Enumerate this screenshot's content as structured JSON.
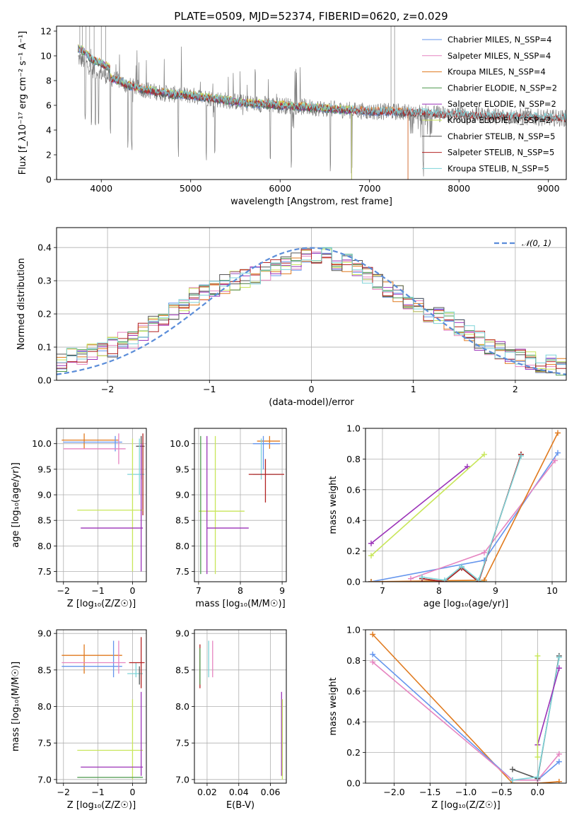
{
  "figure_title": "PLATE=0509, MJD=52374, FIBERID=0620, z=0.029",
  "colors": {
    "chabrier_miles": "#6495ED",
    "salpeter_miles": "#E684C0",
    "kroupa_miles": "#E07A1E",
    "chabrier_elodie": "#4E9A4E",
    "salpeter_elodie": "#9B32B8",
    "kroupa_elodie": "#C8E65A",
    "chabrier_stelib": "#555555",
    "salpeter_stelib": "#B22222",
    "kroupa_stelib": "#7DD3D8",
    "data": "#808080",
    "gaussian": "#5B8DD9"
  },
  "chart_data": [
    {
      "id": "spectrum",
      "type": "line",
      "xlabel": "wavelength [Angstrom, rest frame]",
      "ylabel": "Flux [f_λ10⁻¹⁷ erg cm⁻² s⁻¹ A⁻¹]",
      "xlim": [
        3500,
        9200
      ],
      "ylim": [
        0,
        12.4
      ],
      "xticks": [
        4000,
        5000,
        6000,
        7000,
        8000,
        9000
      ],
      "yticks": [
        0,
        2,
        4,
        6,
        8,
        10,
        12
      ],
      "legend_position": "top-right",
      "legend": [
        {
          "name": "Chabrier MILES, N_SSP=4",
          "color_key": "chabrier_miles"
        },
        {
          "name": "Salpeter MILES, N_SSP=4",
          "color_key": "salpeter_miles"
        },
        {
          "name": "Kroupa MILES, N_SSP=4",
          "color_key": "kroupa_miles"
        },
        {
          "name": "Chabrier ELODIE, N_SSP=2",
          "color_key": "chabrier_elodie"
        },
        {
          "name": "Salpeter ELODIE, N_SSP=2",
          "color_key": "salpeter_elodie"
        },
        {
          "name": "Kroupa ELODIE, N_SSP=2",
          "color_key": "kroupa_elodie"
        },
        {
          "name": "Chabrier STELIB, N_SSP=5",
          "color_key": "chabrier_stelib"
        },
        {
          "name": "Salpeter STELIB, N_SSP=5",
          "color_key": "salpeter_stelib"
        },
        {
          "name": "Kroupa STELIB, N_SSP=5",
          "color_key": "kroupa_stelib"
        }
      ],
      "observed_continuum": [
        [
          3740,
          9.8
        ],
        [
          3800,
          9.6
        ],
        [
          3900,
          8.9
        ],
        [
          4000,
          8.6
        ],
        [
          4100,
          8.2
        ],
        [
          4200,
          8.0
        ],
        [
          4300,
          7.6
        ],
        [
          4400,
          7.4
        ],
        [
          4600,
          7.1
        ],
        [
          4800,
          6.9
        ],
        [
          5000,
          6.8
        ],
        [
          5200,
          6.6
        ],
        [
          5400,
          6.4
        ],
        [
          5600,
          6.2
        ],
        [
          5800,
          6.1
        ],
        [
          6000,
          6.0
        ],
        [
          6200,
          5.9
        ],
        [
          6400,
          5.8
        ],
        [
          6600,
          5.7
        ],
        [
          6800,
          5.6
        ],
        [
          7000,
          5.5
        ],
        [
          7200,
          5.5
        ],
        [
          7400,
          5.45
        ],
        [
          7600,
          5.4
        ],
        [
          7800,
          5.3
        ],
        [
          8000,
          5.25
        ],
        [
          8200,
          5.2
        ],
        [
          8400,
          5.15
        ],
        [
          8600,
          5.1
        ],
        [
          8800,
          5.05
        ],
        [
          9000,
          5.0
        ],
        [
          9200,
          4.95
        ]
      ],
      "model_end_wavelengths": {
        "chabrier_miles": 7430,
        "salpeter_miles": 7430,
        "kroupa_miles": 7430,
        "chabrier_elodie": 6800,
        "salpeter_elodie": 6800,
        "kroupa_elodie": 6800,
        "chabrier_stelib": 9200,
        "salpeter_stelib": 9200,
        "kroupa_stelib": 9200
      }
    },
    {
      "id": "residual_histogram",
      "type": "line",
      "xlabel": "(data-model)/error",
      "ylabel": "Normed distribution",
      "xlim": [
        -2.5,
        2.5
      ],
      "ylim": [
        0,
        0.46
      ],
      "xticks": [
        -2,
        -1,
        0,
        1,
        2
      ],
      "yticks": [
        0.0,
        0.1,
        0.2,
        0.3,
        0.4
      ],
      "legend_position": "top-right",
      "legend": [
        {
          "name": "𝒩(0, 1)",
          "color_key": "gaussian",
          "style": "dashed"
        }
      ],
      "bin_width": 0.1,
      "bin_start": -2.5,
      "histogram_mean": [
        0.05,
        0.07,
        0.07,
        0.08,
        0.09,
        0.1,
        0.12,
        0.12,
        0.15,
        0.17,
        0.19,
        0.21,
        0.23,
        0.25,
        0.27,
        0.28,
        0.29,
        0.3,
        0.31,
        0.32,
        0.33,
        0.34,
        0.35,
        0.36,
        0.37,
        0.38,
        0.37,
        0.36,
        0.35,
        0.34,
        0.32,
        0.3,
        0.28,
        0.26,
        0.24,
        0.22,
        0.2,
        0.19,
        0.18,
        0.16,
        0.14,
        0.12,
        0.1,
        0.09,
        0.08,
        0.07,
        0.06,
        0.05,
        0.05,
        0.04
      ]
    },
    {
      "id": "age_vs_Z",
      "type": "scatter",
      "xlabel": "Z [log₁₀(Z/Z☉)]",
      "ylabel": "age  [log₁₀(age/yr)]",
      "xlim": [
        -2.2,
        0.4
      ],
      "ylim": [
        7.3,
        10.3
      ],
      "xticks": [
        -2,
        -1,
        0
      ],
      "yticks": [
        7.5,
        8.0,
        8.5,
        9.0,
        9.5,
        10.0
      ]
    },
    {
      "id": "age_vs_mass",
      "type": "scatter",
      "xlabel": "mass [log₁₀(M/M☉)]",
      "ylabel": "",
      "xlim": [
        6.9,
        9.1
      ],
      "ylim": [
        7.3,
        10.3
      ],
      "xticks": [
        7,
        8,
        9
      ],
      "yticks": [
        7.5,
        8.0,
        8.5,
        9.0,
        9.5,
        10.0
      ]
    },
    {
      "id": "weight_vs_age",
      "type": "line",
      "xlabel": "age  [log₁₀(age/yr)]",
      "ylabel": "mass weight",
      "xlim": [
        6.7,
        10.25
      ],
      "ylim": [
        0,
        1.0
      ],
      "xticks": [
        7,
        8,
        9,
        10
      ],
      "yticks": [
        0.0,
        0.2,
        0.4,
        0.6,
        0.8,
        1.0
      ],
      "series": [
        {
          "color_key": "salpeter_elodie",
          "x": [
            6.8,
            8.5
          ],
          "y": [
            0.25,
            0.75
          ]
        },
        {
          "color_key": "kroupa_elodie",
          "x": [
            6.8,
            8.8
          ],
          "y": [
            0.17,
            0.83
          ]
        },
        {
          "color_key": "chabrier_elodie",
          "x": [
            6.8,
            8.8
          ],
          "y": [
            0.0,
            0.0
          ]
        },
        {
          "color_key": "chabrier_miles",
          "x": [
            6.8,
            8.8,
            10.1
          ],
          "y": [
            0.0,
            0.14,
            0.84
          ]
        },
        {
          "color_key": "salpeter_miles",
          "x": [
            7.5,
            8.8,
            10.05
          ],
          "y": [
            0.02,
            0.19,
            0.79
          ]
        },
        {
          "color_key": "kroupa_miles",
          "x": [
            6.8,
            8.8,
            10.1
          ],
          "y": [
            0.0,
            0.01,
            0.97
          ]
        },
        {
          "color_key": "chabrier_stelib",
          "x": [
            7.7,
            8.1,
            8.4,
            8.7,
            9.45
          ],
          "y": [
            0.02,
            0.0,
            0.09,
            0.0,
            0.83
          ]
        },
        {
          "color_key": "salpeter_stelib",
          "x": [
            7.7,
            8.1,
            8.4,
            8.7,
            9.45
          ],
          "y": [
            0.02,
            0.0,
            0.09,
            0.0,
            0.83
          ]
        },
        {
          "color_key": "kroupa_stelib",
          "x": [
            7.7,
            8.1,
            8.4,
            8.7,
            9.45
          ],
          "y": [
            0.03,
            0.01,
            0.1,
            0.01,
            0.82
          ]
        }
      ]
    },
    {
      "id": "mass_vs_Z",
      "type": "scatter",
      "xlabel": "Z [log₁₀(Z/Z☉)]",
      "ylabel": "mass [log₁₀(M/M☉)]",
      "xlim": [
        -2.2,
        0.4
      ],
      "ylim": [
        6.95,
        9.05
      ],
      "xticks": [
        -2,
        -1,
        0
      ],
      "yticks": [
        7.0,
        7.5,
        8.0,
        8.5,
        9.0
      ]
    },
    {
      "id": "mass_vs_EBV",
      "type": "scatter",
      "xlabel": "E(B-V)",
      "ylabel": "",
      "xlim": [
        0.012,
        0.07
      ],
      "ylim": [
        6.95,
        9.05
      ],
      "xticks": [
        0.02,
        0.04,
        0.06
      ],
      "yticks": [
        7.0,
        7.5,
        8.0,
        8.5,
        9.0
      ]
    },
    {
      "id": "weight_vs_Z",
      "type": "line",
      "xlabel": "Z [log₁₀(Z/Z☉)]",
      "ylabel": "mass weight",
      "xlim": [
        -2.4,
        0.4
      ],
      "ylim": [
        0,
        1.0
      ],
      "xticks": [
        -2.0,
        -1.5,
        -1.0,
        -0.5,
        0.0
      ],
      "yticks": [
        0.0,
        0.2,
        0.4,
        0.6,
        0.8,
        1.0
      ],
      "series": [
        {
          "color_key": "kroupa_miles",
          "x": [
            -2.3,
            -0.35,
            0.0,
            0.3
          ],
          "y": [
            0.97,
            0.0,
            0.0,
            0.01
          ]
        },
        {
          "color_key": "chabrier_miles",
          "x": [
            -2.3,
            -0.35,
            0.0,
            0.3
          ],
          "y": [
            0.84,
            0.02,
            0.02,
            0.14
          ]
        },
        {
          "color_key": "salpeter_miles",
          "x": [
            -2.3,
            -0.35,
            0.0,
            0.3
          ],
          "y": [
            0.79,
            0.02,
            0.02,
            0.19
          ]
        },
        {
          "color_key": "chabrier_stelib",
          "x": [
            -0.35,
            0.0,
            0.3
          ],
          "y": [
            0.09,
            0.03,
            0.83
          ]
        },
        {
          "color_key": "kroupa_stelib",
          "x": [
            -0.35,
            0.0,
            0.3
          ],
          "y": [
            0.02,
            0.04,
            0.82
          ]
        },
        {
          "color_key": "salpeter_elodie",
          "x": [
            0.0,
            0.3
          ],
          "y": [
            0.25,
            0.75
          ]
        },
        {
          "color_key": "kroupa_elodie",
          "x": [
            0.0,
            0.0
          ],
          "y": [
            0.17,
            0.83
          ]
        }
      ]
    }
  ]
}
